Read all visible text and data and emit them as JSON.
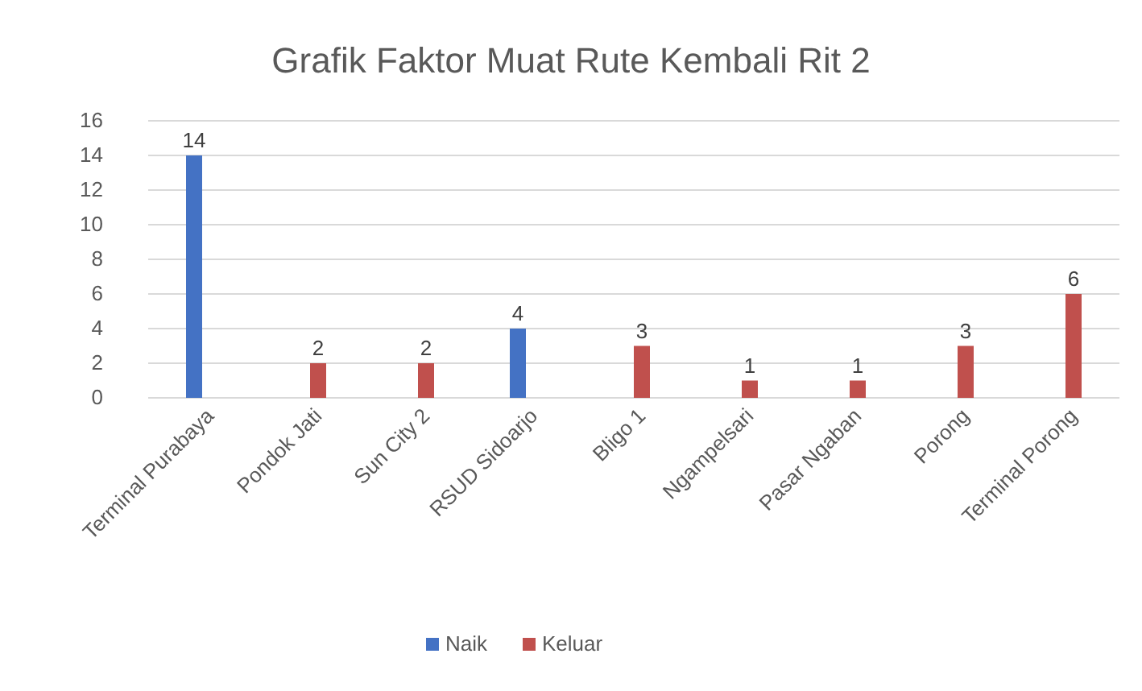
{
  "chart_data": {
    "type": "bar",
    "title": "Grafik Faktor Muat Rute Kembali Rit 2",
    "categories": [
      "Terminal Purabaya",
      "Pondok Jati",
      "Sun City 2",
      "RSUD Sidoarjo",
      "Bligo 1",
      "Ngampelsari",
      "Pasar Ngaban",
      "Porong",
      "Terminal Porong"
    ],
    "series": [
      {
        "name": "Naik",
        "color": "#4472c4",
        "values": [
          14,
          null,
          null,
          4,
          null,
          null,
          null,
          null,
          null
        ]
      },
      {
        "name": "Keluar",
        "color": "#c0504d",
        "values": [
          null,
          2,
          2,
          null,
          3,
          1,
          1,
          3,
          6
        ]
      }
    ],
    "ylim": [
      0,
      16
    ],
    "yticks": [
      0,
      2,
      4,
      6,
      8,
      10,
      12,
      14,
      16
    ],
    "grid": "y",
    "legend": "bottom",
    "data_labels": true
  }
}
